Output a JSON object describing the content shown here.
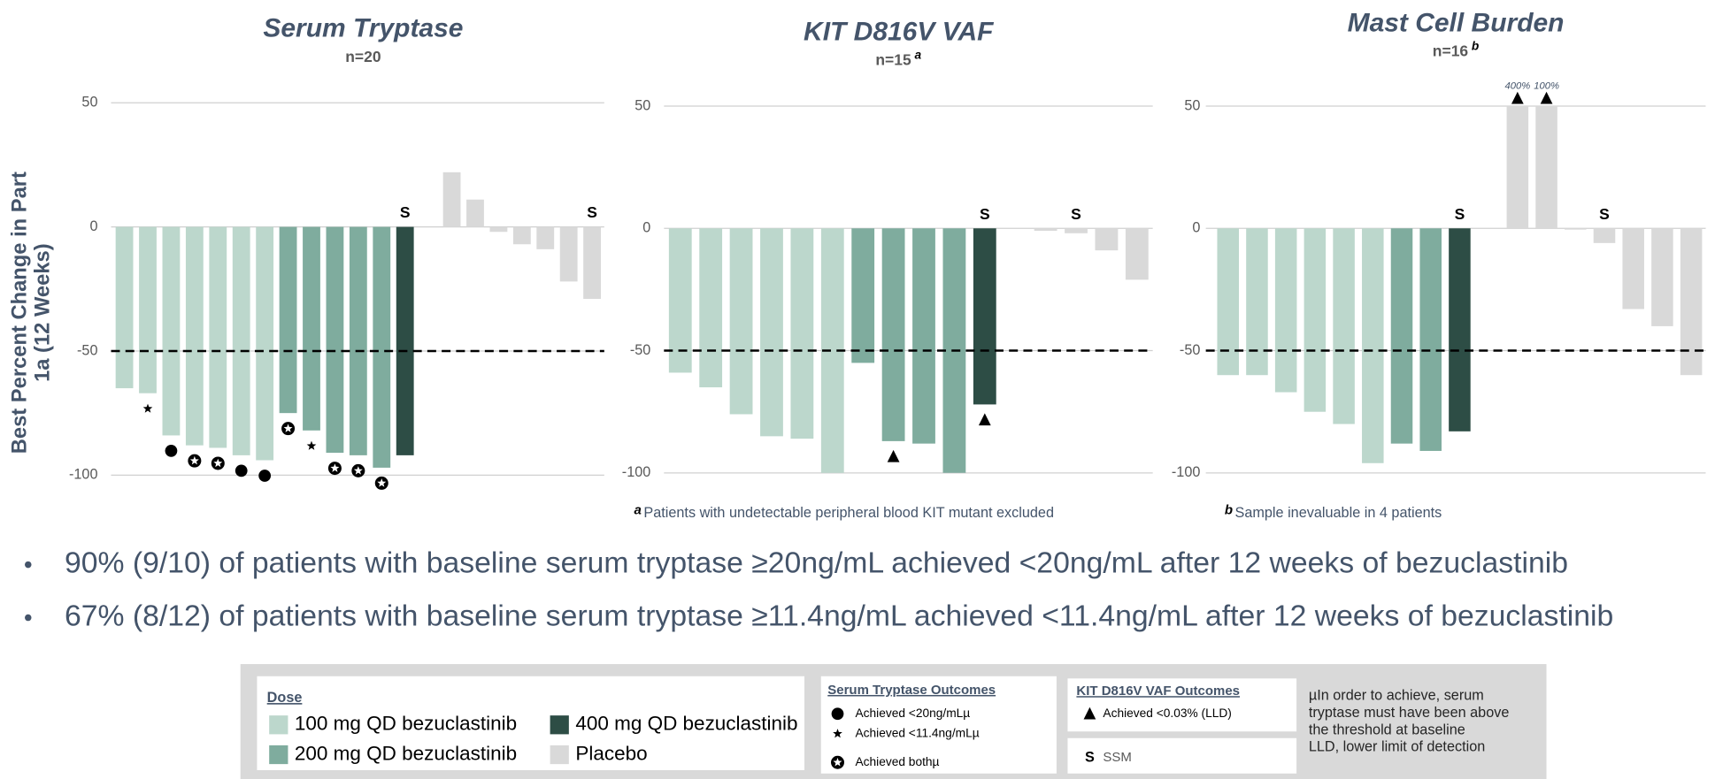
{
  "ylabel": [
    "Best Percent Change in Part",
    "1a (12 Weeks)"
  ],
  "chart_data": [
    {
      "type": "bar",
      "title": "Serum Tryptase",
      "subtitle": "n=20",
      "values": [
        -65,
        -67,
        -84,
        -88,
        -89,
        -92,
        -94,
        -75,
        -82,
        -91,
        -92,
        -97,
        -92,
        null,
        22,
        11,
        -2,
        -7,
        -9,
        -22,
        -29
      ],
      "colors": [
        "#bcd7cc",
        "#bcd7cc",
        "#bcd7cc",
        "#bcd7cc",
        "#bcd7cc",
        "#bcd7cc",
        "#bcd7cc",
        "#7fac9e",
        "#7fac9e",
        "#7fac9e",
        "#7fac9e",
        "#7fac9e",
        "#2d4d45",
        null,
        "#d9d9d9",
        "#d9d9d9",
        "#d9d9d9",
        "#d9d9d9",
        "#d9d9d9",
        "#d9d9d9",
        "#d9d9d9"
      ],
      "outcomes": [
        null,
        "star",
        "circle",
        "star-circle",
        "star-circle",
        "circle",
        "circle",
        "star-circle",
        "star",
        "star-circle",
        "star-circle",
        "star-circle",
        null,
        null,
        null,
        null,
        null,
        null,
        null,
        null,
        null
      ],
      "ssm": [
        null,
        null,
        null,
        null,
        null,
        null,
        null,
        null,
        null,
        null,
        null,
        null,
        "S",
        null,
        null,
        null,
        null,
        null,
        null,
        null,
        "S"
      ],
      "ylim": [
        -100,
        50
      ],
      "yticks": [
        -100,
        -50,
        0,
        50
      ],
      "threshold": -50
    },
    {
      "type": "bar",
      "title": "KIT D816V VAF",
      "subtitle": "n=15",
      "subtitle_note": "a",
      "footnote_note": "a",
      "footnote": "Patients with undetectable peripheral blood KIT mutant excluded",
      "values": [
        -59,
        -65,
        -76,
        -85,
        -86,
        -100,
        -55,
        -87,
        -88,
        -100,
        -72,
        null,
        -1,
        -2,
        -9,
        -21
      ],
      "colors": [
        "#bcd7cc",
        "#bcd7cc",
        "#bcd7cc",
        "#bcd7cc",
        "#bcd7cc",
        "#bcd7cc",
        "#7fac9e",
        "#7fac9e",
        "#7fac9e",
        "#7fac9e",
        "#2d4d45",
        null,
        "#d9d9d9",
        "#d9d9d9",
        "#d9d9d9",
        "#d9d9d9"
      ],
      "outcomes": [
        null,
        null,
        null,
        null,
        null,
        null,
        null,
        "triangle",
        null,
        null,
        "triangle",
        null,
        null,
        null,
        null,
        null
      ],
      "ssm": [
        null,
        null,
        null,
        null,
        null,
        null,
        null,
        null,
        null,
        null,
        "S",
        null,
        null,
        "S",
        null,
        null
      ],
      "ylim": [
        -100,
        50
      ],
      "yticks": [
        -100,
        -50,
        0,
        50
      ],
      "threshold": -50
    },
    {
      "type": "bar",
      "title": "Mast Cell Burden",
      "subtitle": "n=16",
      "subtitle_note": "b",
      "footnote_note": "b",
      "footnote": "Sample inevaluable in 4 patients",
      "values": [
        -60,
        -60,
        -67,
        -75,
        -80,
        -96,
        -88,
        -91,
        -83,
        null,
        400,
        100,
        -0.5,
        -6,
        -33,
        -40,
        -60
      ],
      "value_labels": [
        null,
        null,
        null,
        null,
        null,
        null,
        null,
        null,
        null,
        null,
        "400%",
        "100%",
        null,
        null,
        null,
        null,
        null
      ],
      "colors": [
        "#bcd7cc",
        "#bcd7cc",
        "#bcd7cc",
        "#bcd7cc",
        "#bcd7cc",
        "#bcd7cc",
        "#7fac9e",
        "#7fac9e",
        "#2d4d45",
        null,
        "#d9d9d9",
        "#d9d9d9",
        "#d9d9d9",
        "#d9d9d9",
        "#d9d9d9",
        "#d9d9d9",
        "#d9d9d9"
      ],
      "outcomes": [
        null,
        null,
        null,
        null,
        null,
        null,
        null,
        null,
        null,
        null,
        "triangle",
        "triangle",
        null,
        null,
        null,
        null,
        null
      ],
      "ssm": [
        null,
        null,
        null,
        null,
        null,
        null,
        null,
        null,
        "S",
        null,
        null,
        null,
        null,
        "S",
        null,
        null,
        null
      ],
      "ylim": [
        -100,
        50
      ],
      "yticks": [
        -100,
        -50,
        0,
        50
      ],
      "threshold": -50
    }
  ],
  "bullets": [
    "90% (9/10) of patients with baseline serum tryptase ≥20ng/mL achieved <20ng/mL after 12 weeks of bezuclastinib",
    "67% (8/12) of patients with baseline serum tryptase ≥11.4ng/mL achieved <11.4ng/mL after 12 weeks of bezuclastinib"
  ],
  "legend": {
    "dose": {
      "title": "Dose",
      "items": [
        {
          "name": "100 mg QD bezuclastinib",
          "color": "#bcd7cc"
        },
        {
          "name": "200 mg QD bezuclastinib",
          "color": "#7fac9e"
        },
        {
          "name": "400 mg QD bezuclastinib",
          "color": "#2d4d45"
        },
        {
          "name": "Placebo",
          "color": "#d9d9d9"
        }
      ]
    },
    "tryptase": {
      "title": "Serum Tryptase Outcomes",
      "items": [
        {
          "symbol": "circle",
          "label": "Achieved <20ng/mLµ"
        },
        {
          "symbol": "star",
          "label": "Achieved <11.4ng/mLµ"
        },
        {
          "symbol": "star-circle",
          "label": "Achieved bothµ"
        }
      ]
    },
    "kit": {
      "title": "KIT D816V VAF Outcomes",
      "items": [
        {
          "symbol": "triangle",
          "label": "Achieved <0.03% (LLD)"
        }
      ]
    },
    "ssm": {
      "symbol": "S",
      "label": "SSM"
    },
    "note": [
      "µIn order to achieve, serum",
      "tryptase must have been above",
      "the threshold at baseline",
      "LLD, lower limit of detection"
    ]
  }
}
